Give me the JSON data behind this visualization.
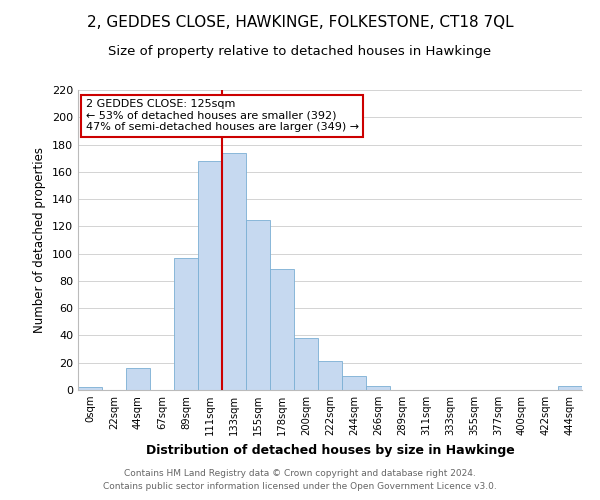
{
  "title": "2, GEDDES CLOSE, HAWKINGE, FOLKESTONE, CT18 7QL",
  "subtitle": "Size of property relative to detached houses in Hawkinge",
  "xlabel": "Distribution of detached houses by size in Hawkinge",
  "ylabel": "Number of detached properties",
  "bar_labels": [
    "0sqm",
    "22sqm",
    "44sqm",
    "67sqm",
    "89sqm",
    "111sqm",
    "133sqm",
    "155sqm",
    "178sqm",
    "200sqm",
    "222sqm",
    "244sqm",
    "266sqm",
    "289sqm",
    "311sqm",
    "333sqm",
    "355sqm",
    "377sqm",
    "400sqm",
    "422sqm",
    "444sqm"
  ],
  "bar_heights": [
    2,
    0,
    16,
    0,
    97,
    168,
    174,
    125,
    89,
    38,
    21,
    10,
    3,
    0,
    0,
    0,
    0,
    0,
    0,
    0,
    3
  ],
  "bar_color": "#c6d9f0",
  "bar_edge_color": "#7bafd4",
  "vline_x": 6.0,
  "vline_color": "#cc0000",
  "annotation_title": "2 GEDDES CLOSE: 125sqm",
  "annotation_line1": "← 53% of detached houses are smaller (392)",
  "annotation_line2": "47% of semi-detached houses are larger (349) →",
  "annotation_box_color": "#ffffff",
  "annotation_box_edge": "#cc0000",
  "ylim": [
    0,
    220
  ],
  "yticks": [
    0,
    20,
    40,
    60,
    80,
    100,
    120,
    140,
    160,
    180,
    200,
    220
  ],
  "footer1": "Contains HM Land Registry data © Crown copyright and database right 2024.",
  "footer2": "Contains public sector information licensed under the Open Government Licence v3.0.",
  "title_fontsize": 11,
  "subtitle_fontsize": 9.5,
  "background_color": "#ffffff"
}
